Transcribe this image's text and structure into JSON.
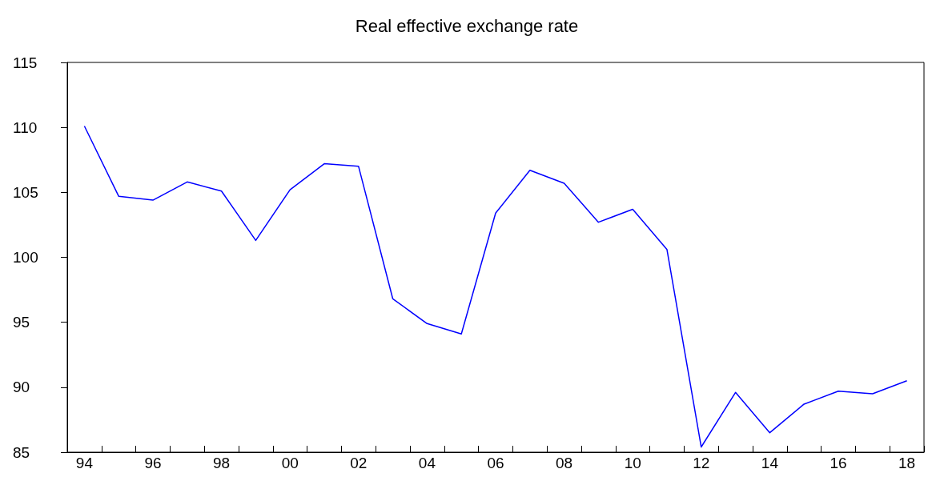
{
  "chart_data": {
    "type": "line",
    "title": "Real effective exchange rate",
    "categories": [
      "94",
      null,
      "96",
      null,
      "98",
      null,
      "00",
      null,
      "02",
      null,
      "04",
      null,
      "06",
      null,
      "08",
      null,
      "10",
      null,
      "12",
      null,
      "14",
      null,
      "16",
      null,
      "18"
    ],
    "series": [
      {
        "color": "#0000ff",
        "values": [
          110.1,
          104.7,
          104.4,
          105.8,
          105.1,
          101.3,
          105.2,
          107.2,
          107.0,
          96.8,
          94.9,
          94.1,
          103.4,
          106.7,
          105.7,
          102.7,
          103.7,
          100.6,
          85.4,
          89.6,
          86.5,
          88.7,
          89.7,
          89.5,
          90.5
        ]
      }
    ],
    "ylim": [
      85,
      115
    ],
    "yticks": [
      85,
      90,
      95,
      100,
      105,
      110,
      115
    ],
    "grid": false,
    "marker": "none",
    "line_style": "solid"
  }
}
